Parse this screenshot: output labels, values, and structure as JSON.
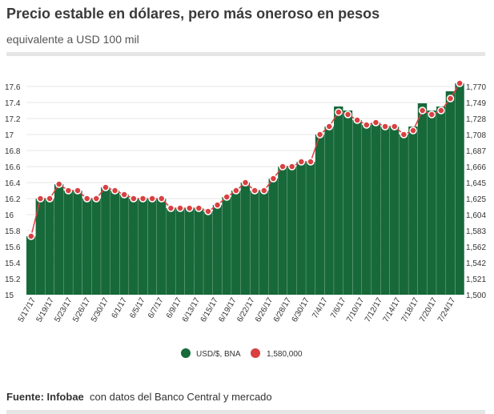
{
  "title": "Precio estable en dólares, pero más oneroso en pesos",
  "subtitle": "equivalente a USD 100 mil",
  "footer": {
    "source_label": "Fuente: Infobae",
    "source_text": "con datos del Banco Central y mercado"
  },
  "colors": {
    "bar": "#17693a",
    "point": "#d94040",
    "line": "#d94040",
    "grid": "#cccccc"
  },
  "chart_data": {
    "type": "bar",
    "legend_position": "bottom",
    "left_ylim": [
      15,
      17.6
    ],
    "right_ylim": [
      1500,
      1770
    ],
    "left_ticks": [
      "15",
      "15.2",
      "15.4",
      "15.6",
      "15.8",
      "16",
      "16.2",
      "16.4",
      "16.6",
      "16.8",
      "17",
      "17.2",
      "17.4",
      "17.6"
    ],
    "right_ticks": [
      "1,500",
      "1,521",
      "1,542",
      "1,562",
      "1,583",
      "1,604",
      "1,625",
      "1,645",
      "1,666",
      "1,687",
      "1,708",
      "1,728",
      "1,749",
      "1,770"
    ],
    "x_labels": [
      "5/17/17",
      "5/19/17",
      "5/23/17",
      "5/26/17",
      "5/30/17",
      "6/1/17",
      "6/5/17",
      "6/7/17",
      "6/9/17",
      "6/13/17",
      "6/15/17",
      "6/19/17",
      "6/22/17",
      "6/26/17",
      "6/28/17",
      "6/30/17",
      "7/4/17",
      "7/6/17",
      "7/10/17",
      "7/12/17",
      "7/14/17",
      "7/18/17",
      "7/20/17",
      "7/24/17"
    ],
    "series": [
      {
        "name": "USD/$, BNA",
        "type": "bar",
        "values": [
          15.73,
          16.2,
          16.2,
          16.38,
          16.3,
          16.3,
          16.2,
          16.2,
          16.34,
          16.3,
          16.25,
          16.2,
          16.2,
          16.2,
          16.2,
          16.08,
          16.08,
          16.08,
          16.08,
          16.04,
          16.12,
          16.22,
          16.3,
          16.4,
          16.3,
          16.3,
          16.45,
          16.6,
          16.6,
          16.66,
          16.66,
          17.0,
          17.1,
          17.35,
          17.3,
          17.18,
          17.12,
          17.15,
          17.1,
          17.1,
          17.0,
          17.1,
          17.39,
          17.3,
          17.35,
          17.54,
          17.64
        ]
      },
      {
        "name": "1,580,000",
        "type": "line",
        "values": [
          15.73,
          16.2,
          16.2,
          16.38,
          16.3,
          16.3,
          16.2,
          16.2,
          16.34,
          16.3,
          16.25,
          16.2,
          16.2,
          16.2,
          16.2,
          16.08,
          16.08,
          16.08,
          16.08,
          16.04,
          16.12,
          16.22,
          16.3,
          16.4,
          16.3,
          16.3,
          16.45,
          16.6,
          16.6,
          16.66,
          16.66,
          17.0,
          17.1,
          17.28,
          17.25,
          17.18,
          17.12,
          17.15,
          17.1,
          17.1,
          17.0,
          17.05,
          17.3,
          17.25,
          17.3,
          17.45,
          17.64
        ]
      }
    ]
  }
}
